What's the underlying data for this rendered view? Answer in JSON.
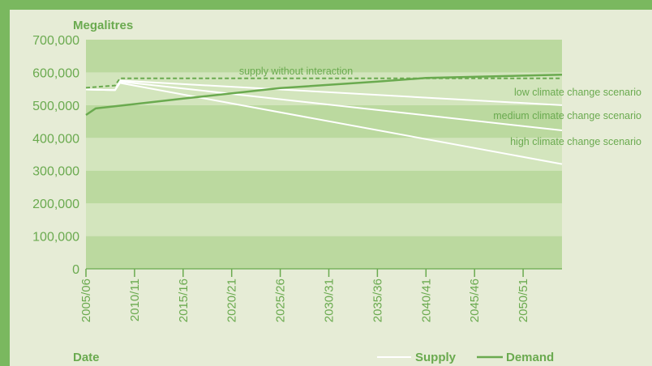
{
  "chart_data": {
    "type": "line",
    "ylabel": "Megalitres",
    "xlabel": "Date",
    "ylim": [
      0,
      700000
    ],
    "yticks": [
      0,
      100000,
      200000,
      300000,
      400000,
      500000,
      600000,
      700000
    ],
    "ytick_labels": [
      "0",
      "100,000",
      "200,000",
      "300,000",
      "400,000",
      "500,000",
      "600,000",
      "700,000"
    ],
    "x_categories": [
      "2005/06",
      "2010/11",
      "2015/16",
      "2020/21",
      "2025/26",
      "2030/31",
      "2035/36",
      "2040/41",
      "2045/46",
      "2050/51"
    ],
    "x_range_years": [
      2005,
      2054
    ],
    "grid": "alternating horizontal bands",
    "legend": {
      "placement": "bottom-right",
      "supply_label": "Supply",
      "demand_label": "Demand"
    },
    "series": [
      {
        "kind": "demand",
        "style": "solid",
        "color": "#6aaa4f",
        "points": [
          [
            2005,
            470000
          ],
          [
            2006,
            490000
          ],
          [
            2009,
            500000
          ],
          [
            2015,
            520000
          ],
          [
            2025,
            552000
          ],
          [
            2035,
            572000
          ],
          [
            2040,
            583000
          ],
          [
            2054,
            593000
          ]
        ]
      },
      {
        "kind": "supply",
        "name": "supply without interaction",
        "style": "dashed",
        "color": "#6aaa4f",
        "points": [
          [
            2005,
            553000
          ],
          [
            2008,
            560000
          ],
          [
            2008.5,
            582000
          ],
          [
            2054,
            582000
          ]
        ]
      },
      {
        "kind": "supply",
        "name": "low climate change scenario",
        "style": "solid",
        "color": "#ffffff",
        "points": [
          [
            2005,
            548000
          ],
          [
            2008,
            546000
          ],
          [
            2008.5,
            575000
          ],
          [
            2054,
            500000
          ]
        ]
      },
      {
        "kind": "supply",
        "name": "medium climate change scenario",
        "style": "solid",
        "color": "#ffffff",
        "points": [
          [
            2005,
            548000
          ],
          [
            2008,
            546000
          ],
          [
            2008.5,
            572000
          ],
          [
            2054,
            423000
          ]
        ]
      },
      {
        "kind": "supply",
        "name": "high climate change scenario",
        "style": "solid",
        "color": "#ffffff",
        "points": [
          [
            2005,
            548000
          ],
          [
            2008,
            546000
          ],
          [
            2008.5,
            568000
          ],
          [
            2054,
            320000
          ]
        ]
      }
    ],
    "annotations": [
      {
        "text": "supply without interaction"
      },
      {
        "text": "low climate change scenario"
      },
      {
        "text": "medium climate change scenario"
      },
      {
        "text": "high climate change scenario"
      }
    ],
    "colors": {
      "band_dark": "#bbd99f",
      "band_light": "#d3e5bd",
      "accent": "#6aaa4f",
      "supply_line": "#ffffff"
    }
  }
}
